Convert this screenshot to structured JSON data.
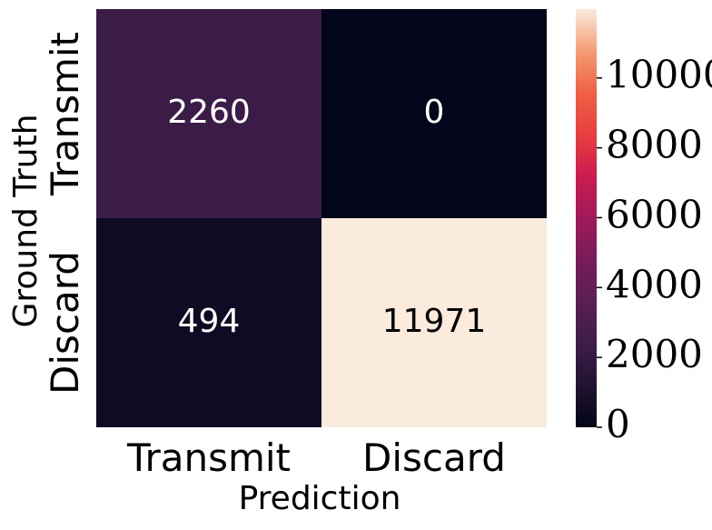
{
  "chart_data": {
    "type": "heatmap",
    "xlabel": "Prediction",
    "ylabel": "Ground Truth",
    "x_categories": [
      "Transmit",
      "Discard"
    ],
    "y_categories": [
      "Transmit",
      "Discard"
    ],
    "values": [
      [
        2260,
        0
      ],
      [
        494,
        11971
      ]
    ],
    "value_range": [
      0,
      11971
    ],
    "colorscale": "rocket",
    "colorbar": {
      "ticks": [
        0,
        2000,
        4000,
        6000,
        8000,
        10000
      ],
      "tick_labels": [
        "0",
        "2000",
        "4000",
        "6000",
        "8000",
        "10000"
      ]
    },
    "annotation_colors": {
      "on_dark": "#ffffff",
      "on_light": "#000000"
    }
  }
}
